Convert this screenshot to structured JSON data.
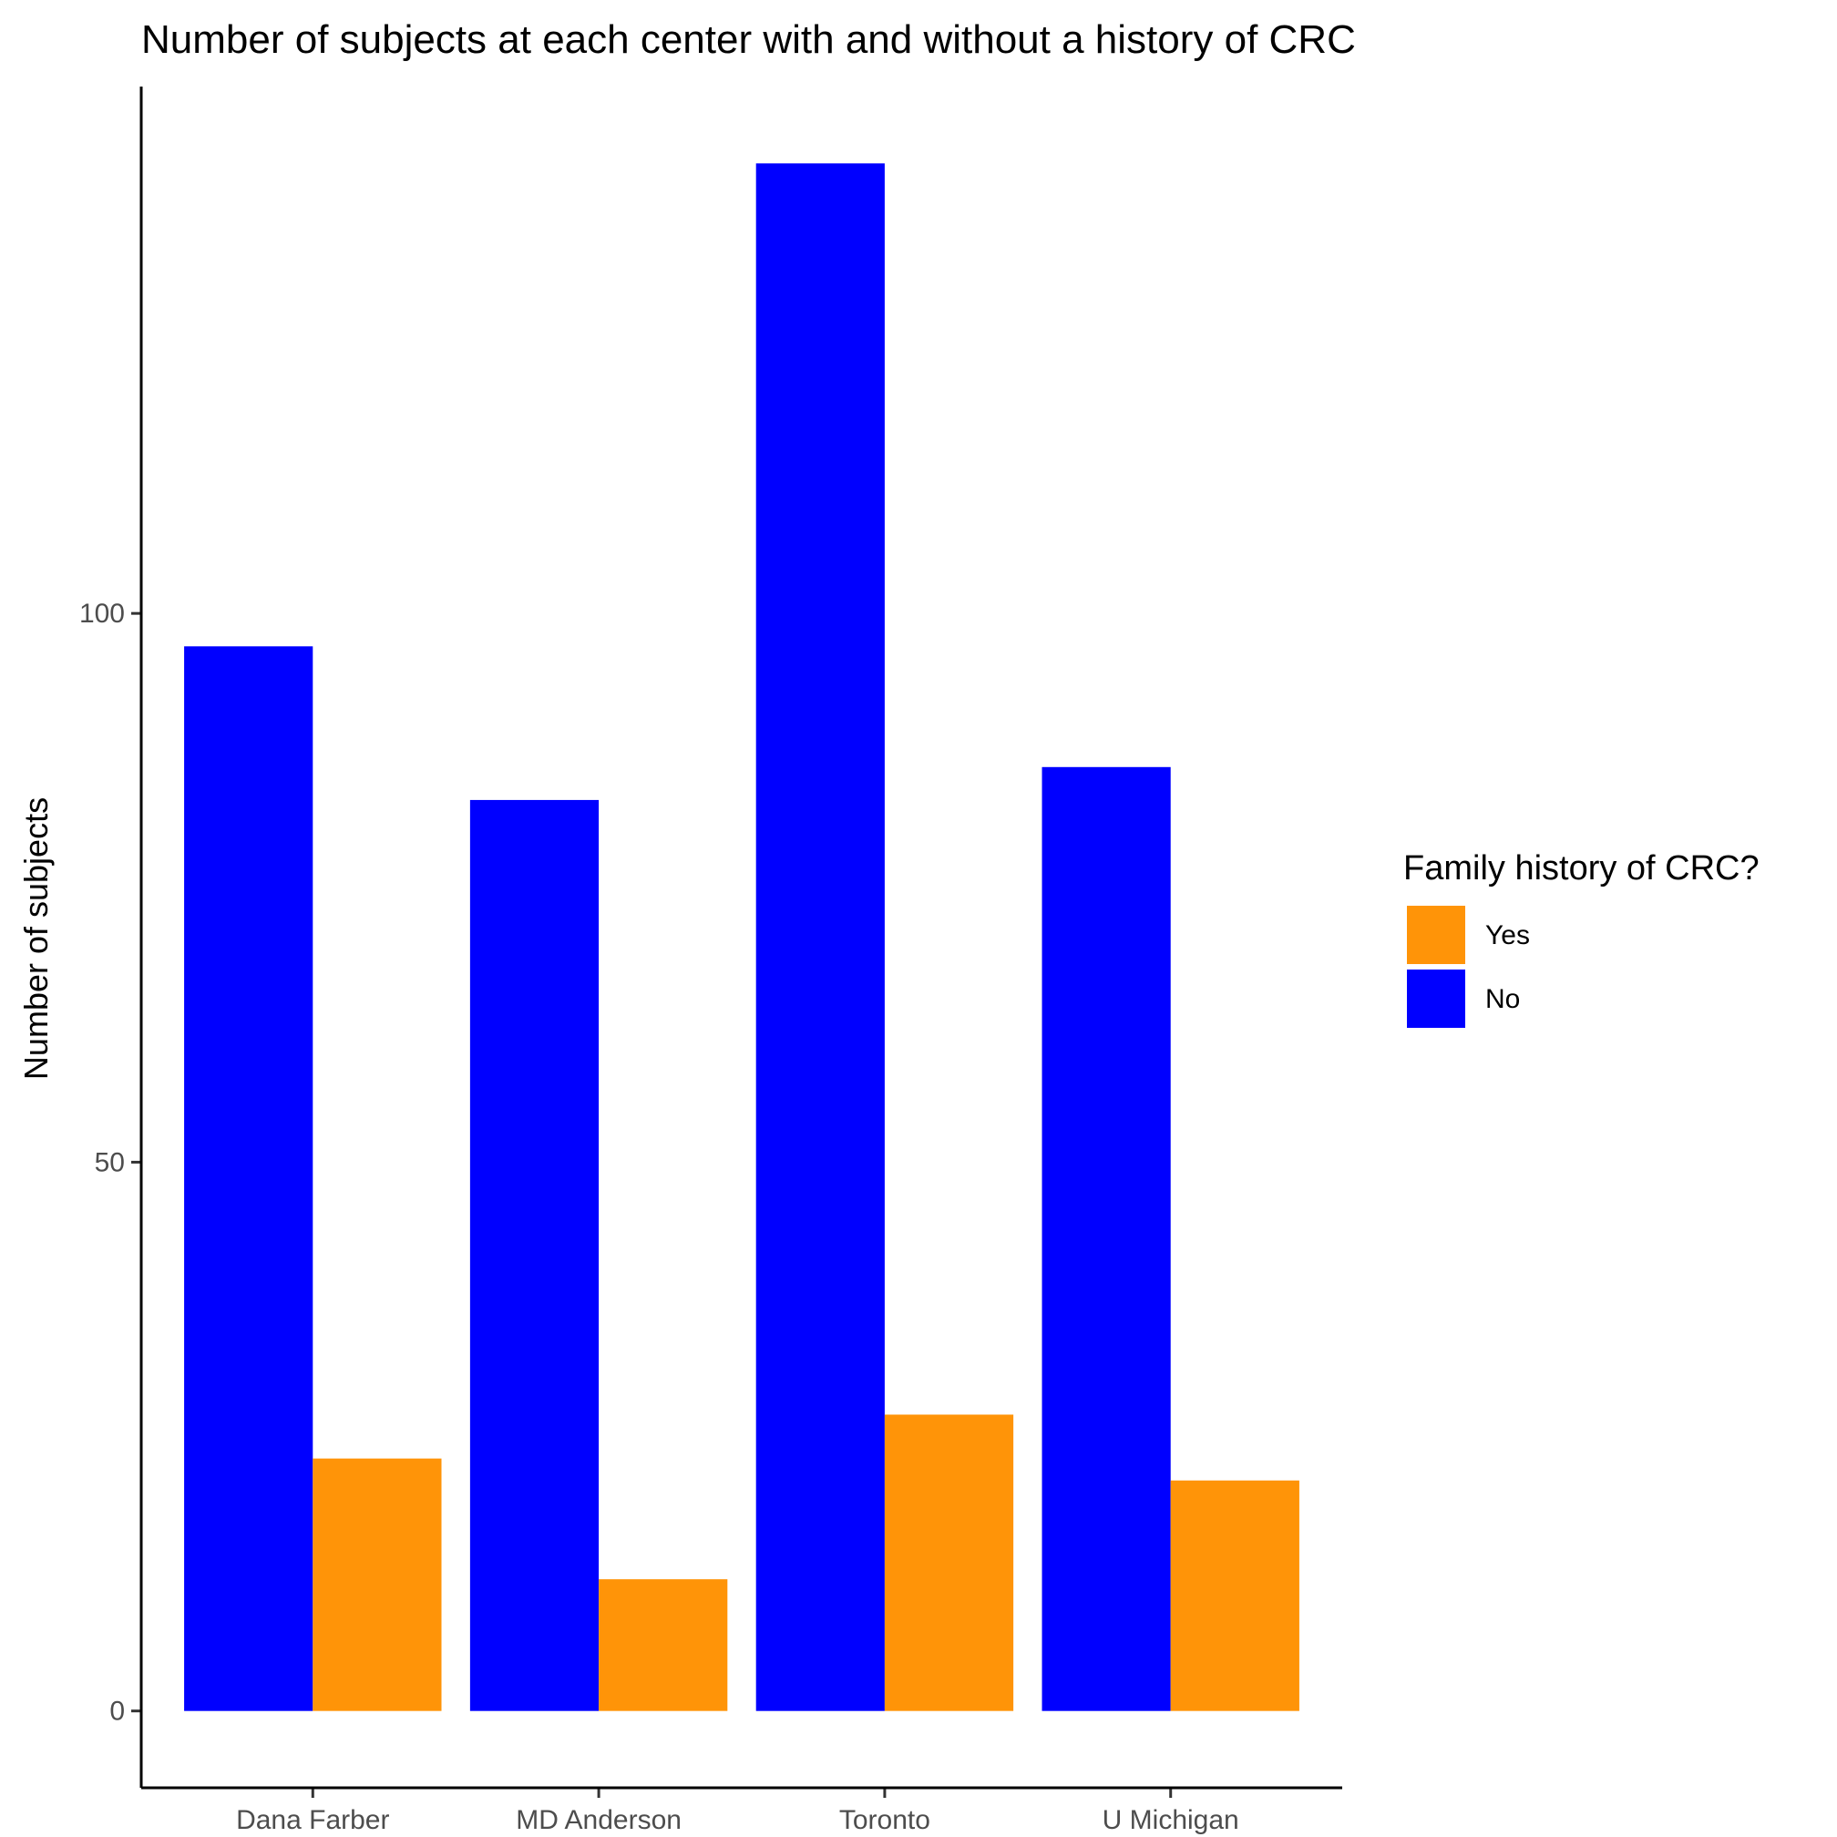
{
  "chart_data": {
    "type": "bar",
    "title": "Number of subjects at each center with and without a history of CRC",
    "xlabel": "",
    "ylabel": "Number of subjects",
    "categories": [
      "Dana Farber",
      "MD Anderson",
      "Toronto",
      "U Michigan"
    ],
    "series": [
      {
        "name": "No",
        "color": "#0000ff",
        "values": [
          97,
          83,
          141,
          86
        ]
      },
      {
        "name": "Yes",
        "color": "#ff9408",
        "values": [
          23,
          12,
          27,
          21
        ]
      }
    ],
    "yticks": [
      0,
      50,
      100
    ],
    "ylim": [
      -7,
      148
    ],
    "grid": false,
    "legend": {
      "title": "Family history of CRC?",
      "position": "right",
      "items": [
        {
          "label": "Yes",
          "color": "#ff9408"
        },
        {
          "label": "No",
          "color": "#0000ff"
        }
      ]
    }
  }
}
